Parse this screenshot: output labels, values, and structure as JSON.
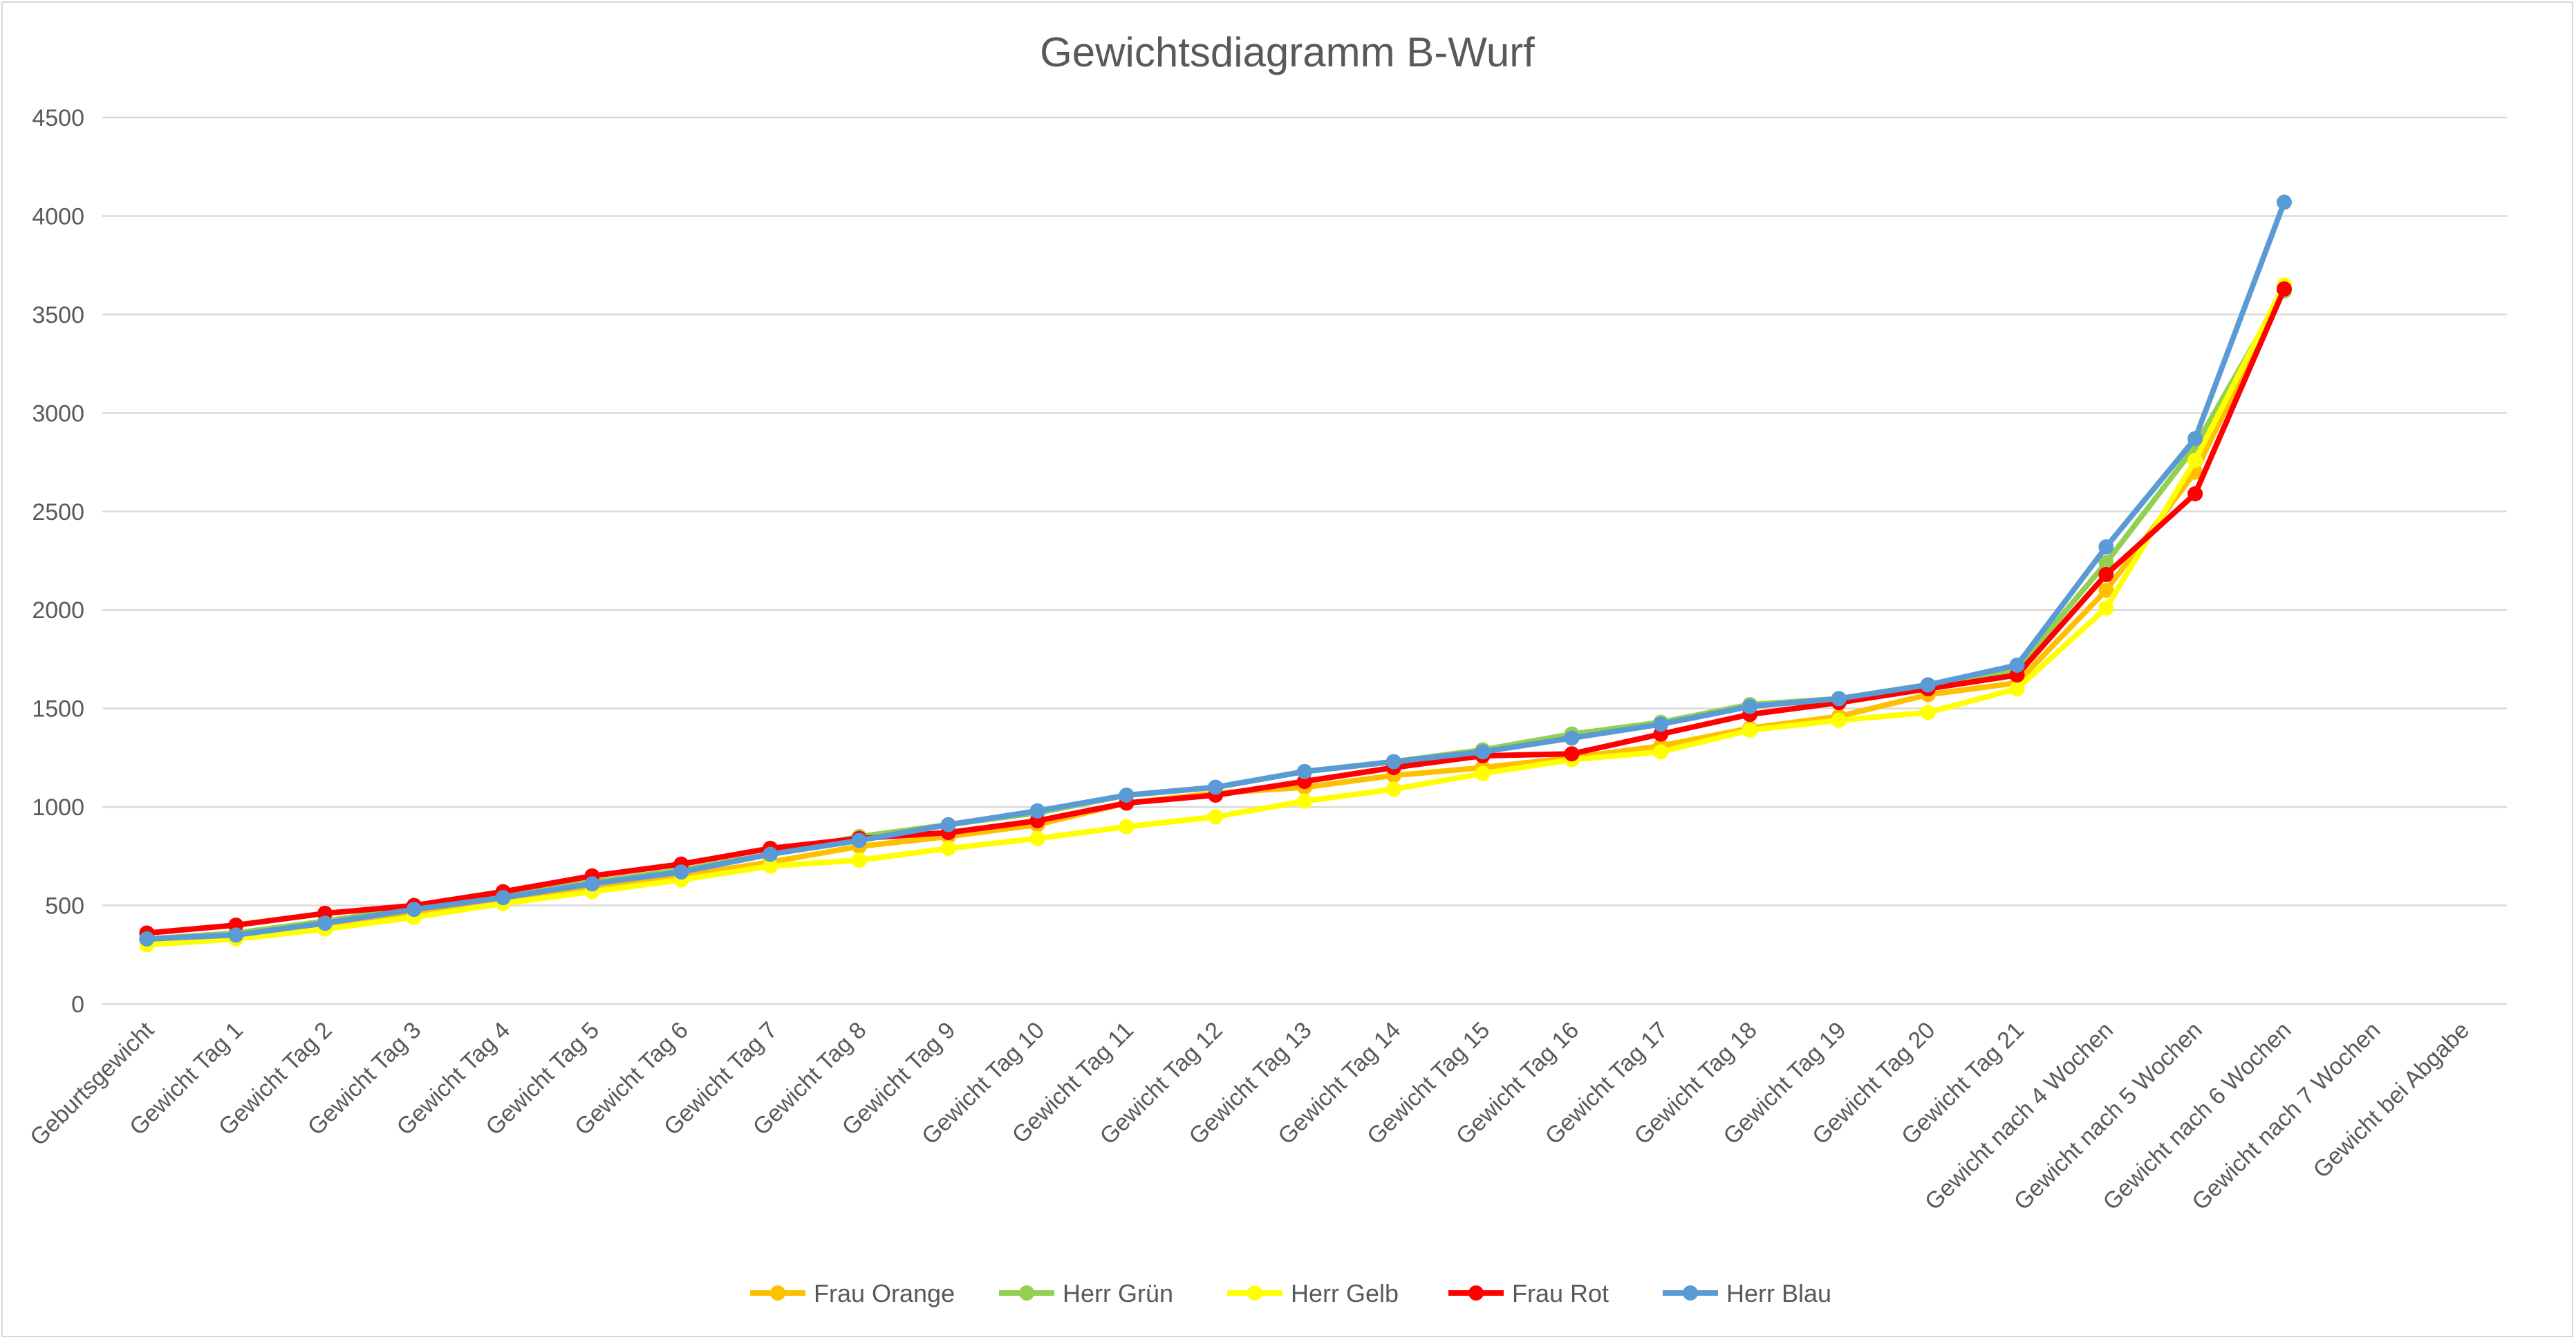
{
  "chart_data": {
    "type": "line",
    "title": "Gewichtsdiagramm B-Wurf",
    "xlabel": "",
    "ylabel": "",
    "ylim": [
      0,
      4500
    ],
    "yticks": [
      0,
      500,
      1000,
      1500,
      2000,
      2500,
      3000,
      3500,
      4000,
      4500
    ],
    "grid": true,
    "legend_position": "bottom",
    "categories": [
      "Geburtsgewicht",
      "Gewicht Tag 1",
      "Gewicht Tag 2",
      "Gewicht Tag 3",
      "Gewicht Tag 4",
      "Gewicht Tag 5",
      "Gewicht Tag 6",
      "Gewicht Tag 7",
      "Gewicht Tag 8",
      "Gewicht Tag 9",
      "Gewicht Tag 10",
      "Gewicht Tag 11",
      "Gewicht Tag 12",
      "Gewicht Tag 13",
      "Gewicht Tag 14",
      "Gewicht Tag 15",
      "Gewicht Tag 16",
      "Gewicht Tag 17",
      "Gewicht Tag 18",
      "Gewicht Tag 19",
      "Gewicht Tag 20",
      "Gewicht Tag 21",
      "Gewicht nach 4 Wochen",
      "Gewicht nach 5 Wochen",
      "Gewicht nach 6 Wochen",
      "Gewicht nach 7 Wochen",
      "Gewicht bei Abgabe"
    ],
    "series": [
      {
        "name": "Frau Orange",
        "color": "#FFC000",
        "values": [
          320,
          345,
          400,
          460,
          520,
          590,
          650,
          720,
          800,
          850,
          910,
          1020,
          1070,
          1100,
          1160,
          1200,
          1250,
          1310,
          1400,
          1460,
          1570,
          1630,
          2100,
          2700,
          3630,
          null,
          null
        ]
      },
      {
        "name": "Herr Grün",
        "color": "#92D050",
        "values": [
          330,
          360,
          420,
          490,
          550,
          620,
          680,
          760,
          850,
          910,
          970,
          1060,
          1100,
          1180,
          1230,
          1290,
          1370,
          1430,
          1520,
          1550,
          1620,
          1700,
          2240,
          2830,
          3620,
          null,
          null
        ]
      },
      {
        "name": "Herr Gelb",
        "color": "#FFFF00",
        "values": [
          300,
          330,
          380,
          440,
          510,
          570,
          630,
          700,
          730,
          790,
          840,
          900,
          950,
          1030,
          1090,
          1170,
          1240,
          1280,
          1390,
          1440,
          1480,
          1600,
          2010,
          2760,
          3650,
          null,
          null
        ]
      },
      {
        "name": "Frau Rot",
        "color": "#FF0000",
        "values": [
          360,
          400,
          460,
          500,
          570,
          650,
          710,
          790,
          840,
          870,
          930,
          1020,
          1060,
          1130,
          1200,
          1260,
          1270,
          1370,
          1470,
          1530,
          1600,
          1670,
          2180,
          2590,
          3630,
          null,
          null
        ]
      },
      {
        "name": "Herr Blau",
        "color": "#5B9BD5",
        "values": [
          330,
          350,
          410,
          480,
          540,
          610,
          670,
          760,
          830,
          910,
          980,
          1060,
          1100,
          1180,
          1230,
          1280,
          1350,
          1420,
          1510,
          1550,
          1620,
          1720,
          2320,
          2870,
          4070,
          null,
          null
        ]
      }
    ]
  }
}
